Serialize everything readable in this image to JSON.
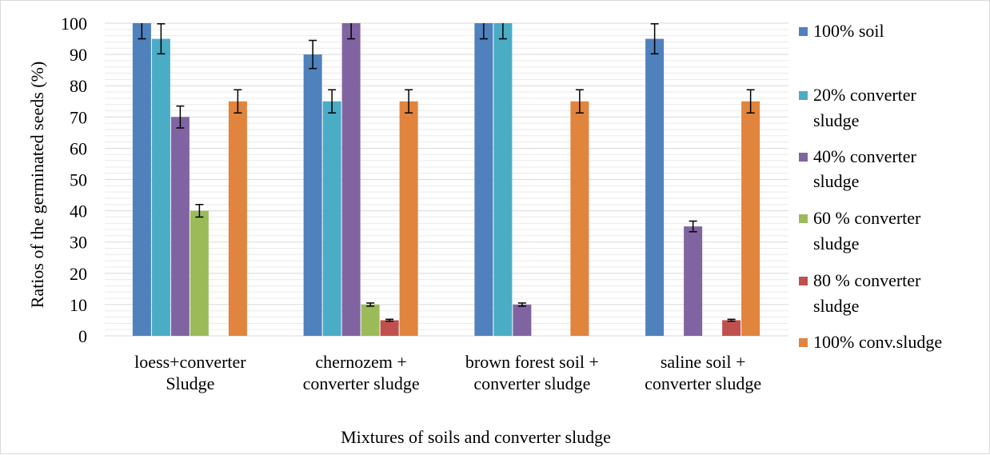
{
  "chart_data": {
    "type": "bar",
    "xlabel": "Mixtures of soils and converter sludge",
    "ylabel": "Ratios of the germinated seeds (%)",
    "ylim": [
      0,
      100
    ],
    "yticks": [
      0,
      10,
      20,
      30,
      40,
      50,
      60,
      70,
      80,
      90,
      100
    ],
    "grid": true,
    "legend_position": "right",
    "categories": [
      [
        "loess+converter",
        "Sludge"
      ],
      [
        "chernozem +",
        "converter sludge"
      ],
      [
        "brown forest soil +",
        "converter sludge"
      ],
      [
        "saline soil +",
        "converter sludge"
      ]
    ],
    "series": [
      {
        "name": [
          "100% soil"
        ],
        "color": "#4f81bd",
        "values": [
          100,
          90,
          100,
          95
        ],
        "errors": [
          5,
          4.5,
          5,
          4.8
        ]
      },
      {
        "name": [
          "20% converter",
          "sludge"
        ],
        "color": "#4bacc6",
        "values": [
          95,
          75,
          100,
          0
        ],
        "errors": [
          4.8,
          3.7,
          5,
          0
        ]
      },
      {
        "name": [
          "40% converter",
          "sludge"
        ],
        "color": "#8064a2",
        "values": [
          70,
          100,
          10,
          35
        ],
        "errors": [
          3.5,
          5,
          0.5,
          1.7
        ]
      },
      {
        "name": [
          "60 % converter",
          "sludge"
        ],
        "color": "#9bbb59",
        "values": [
          40,
          10,
          0,
          0
        ],
        "errors": [
          2,
          0.5,
          0,
          0
        ]
      },
      {
        "name": [
          "80 % converter",
          "sludge"
        ],
        "color": "#c0504d",
        "values": [
          0,
          5,
          0,
          5
        ],
        "errors": [
          0,
          0.3,
          0,
          0.3
        ]
      },
      {
        "name": [
          "100% conv.sludge"
        ],
        "color": "#e1843d",
        "values": [
          75,
          75,
          75,
          75
        ],
        "errors": [
          3.7,
          3.7,
          3.7,
          3.7
        ]
      }
    ]
  }
}
